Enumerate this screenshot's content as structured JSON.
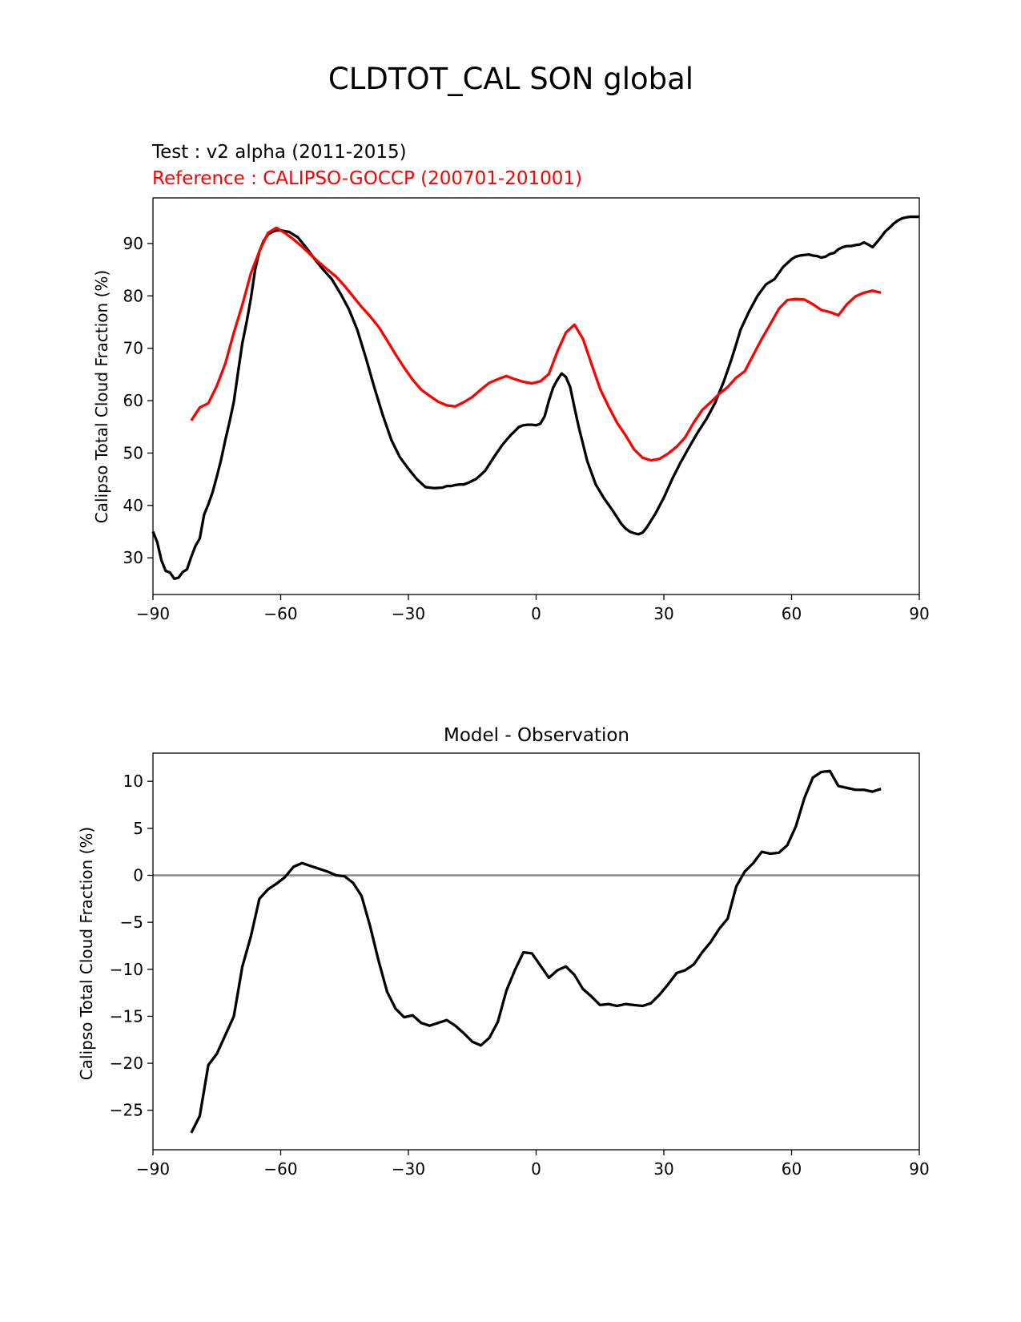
{
  "figure": {
    "title": "CLDTOT_CAL SON global"
  },
  "colors": {
    "test": "#000000",
    "reference": "#ff0000",
    "zero_line": "#808080"
  },
  "chart_data": [
    {
      "type": "line",
      "title_test": "Test : v2 alpha (2011-2015)",
      "title_reference": "Reference : CALIPSO-GOCCP (200701-201001)",
      "xlabel": "",
      "ylabel": "Calipso Total Cloud Fraction (%)",
      "xlim": [
        -90,
        90
      ],
      "ylim": [
        23,
        98.7
      ],
      "xticks": [
        -90,
        -60,
        -30,
        0,
        30,
        60,
        90
      ],
      "yticks": [
        30,
        40,
        50,
        60,
        70,
        80,
        90
      ],
      "series": [
        {
          "name": "Test",
          "color": "#000000",
          "x": [
            -90,
            -89,
            -88,
            -87,
            -86,
            -85,
            -84,
            -83,
            -82,
            -81,
            -80,
            -79,
            -78,
            -77,
            -76,
            -75,
            -74,
            -73,
            -72,
            -71,
            -70,
            -69,
            -68,
            -67,
            -66,
            -65,
            -64,
            -63,
            -62,
            -61,
            -60,
            -58,
            -56,
            -54,
            -52,
            -50,
            -48,
            -46,
            -44,
            -42,
            -40,
            -38,
            -36,
            -34,
            -32,
            -30,
            -28,
            -26,
            -24,
            -22,
            -21,
            -20,
            -19,
            -18,
            -17,
            -16,
            -14,
            -12,
            -10,
            -8,
            -6,
            -4,
            -3,
            -2,
            -1,
            0,
            1,
            2,
            3,
            4,
            5,
            6,
            7,
            8,
            9,
            10,
            12,
            14,
            16,
            18,
            20,
            21,
            22,
            23,
            24,
            25,
            26,
            27,
            28,
            30,
            32,
            34,
            36,
            38,
            40,
            42,
            44,
            45,
            46,
            47,
            48,
            50,
            52,
            54,
            56,
            58,
            60,
            61,
            62,
            63,
            64,
            65,
            66,
            67,
            68,
            69,
            70,
            71,
            72,
            73,
            74,
            75,
            76,
            77,
            78,
            79,
            80,
            81,
            82,
            83,
            84,
            85,
            86,
            87,
            88,
            89,
            90
          ],
          "values": [
            35,
            33,
            29.5,
            27.5,
            27.2,
            26,
            26.2,
            27.3,
            27.8,
            30.2,
            32.3,
            33.7,
            38.2,
            40.2,
            42.5,
            45.5,
            48.7,
            52.5,
            56,
            59.8,
            65.5,
            71,
            75,
            79.5,
            85,
            88.5,
            90.5,
            91.7,
            92.2,
            92.5,
            92.5,
            92.2,
            91.2,
            89.2,
            87,
            85,
            83.2,
            80.5,
            77.5,
            73.5,
            68.2,
            62.5,
            57.2,
            52.5,
            49.2,
            47,
            45,
            43.5,
            43.3,
            43.4,
            43.7,
            43.7,
            43.9,
            44,
            44,
            44.3,
            45.1,
            46.6,
            49.1,
            51.5,
            53.4,
            55,
            55.3,
            55.4,
            55.4,
            55.3,
            55.6,
            57,
            60,
            62.5,
            64,
            65.2,
            64.5,
            62.6,
            58.7,
            55,
            48.5,
            44,
            41.3,
            39,
            36.5,
            35.6,
            35,
            34.7,
            34.5,
            34.8,
            35.8,
            37.1,
            38.4,
            41.5,
            45.1,
            48.3,
            51.2,
            54,
            56.5,
            59.5,
            63.5,
            65.8,
            68.2,
            70.8,
            73.5,
            77,
            80,
            82.2,
            83.2,
            85.5,
            87,
            87.5,
            87.7,
            87.8,
            87.9,
            87.7,
            87.6,
            87.3,
            87.5,
            88,
            88.2,
            88.9,
            89.3,
            89.5,
            89.5,
            89.7,
            89.8,
            90.2,
            89.8,
            89.3,
            90.2,
            91.2,
            92.3,
            93,
            93.8,
            94.4,
            94.8,
            95,
            95.1,
            95.1,
            95.1
          ]
        },
        {
          "name": "Reference",
          "color": "#ff0000",
          "x": [
            -81,
            -79,
            -77,
            -75,
            -73,
            -71,
            -69,
            -67,
            -65,
            -63,
            -61,
            -59,
            -57,
            -55,
            -53,
            -51,
            -49,
            -47,
            -45,
            -43,
            -41,
            -39,
            -37,
            -35,
            -33,
            -31,
            -29,
            -27,
            -25,
            -23,
            -21,
            -19,
            -17,
            -15,
            -13,
            -11,
            -9,
            -7,
            -5,
            -3,
            -1,
            1,
            3,
            5,
            7,
            9,
            11,
            13,
            15,
            17,
            19,
            21,
            23,
            25,
            27,
            29,
            31,
            33,
            35,
            37,
            39,
            41,
            43,
            45,
            47,
            49,
            51,
            53,
            55,
            57,
            59,
            61,
            63,
            65,
            67,
            69,
            71,
            73,
            75,
            77,
            79,
            81
          ],
          "values": [
            56.2,
            58.7,
            59.5,
            62.8,
            67.1,
            73,
            78.3,
            84.3,
            88.5,
            92,
            93,
            92,
            90.8,
            89.4,
            87.9,
            86.4,
            85,
            83.7,
            81.9,
            79.9,
            77.9,
            76.1,
            74.1,
            71.5,
            68.8,
            66.3,
            64,
            62.1,
            60.9,
            59.8,
            59.1,
            58.9,
            59.7,
            60.7,
            62.1,
            63.4,
            64.1,
            64.7,
            64.1,
            63.6,
            63.3,
            63.7,
            65.1,
            69.4,
            73,
            74.5,
            71.8,
            67,
            62.3,
            58.9,
            55.8,
            53.4,
            50.7,
            49.1,
            48.6,
            48.9,
            49.9,
            51.2,
            53,
            55.8,
            58.2,
            59.7,
            61.3,
            62.6,
            64.4,
            65.6,
            68.7,
            71.8,
            74.6,
            77.5,
            79.2,
            79.4,
            79.3,
            78.4,
            77.3,
            76.9,
            76.3,
            78.4,
            79.9,
            80.6,
            81,
            80.6
          ]
        }
      ]
    },
    {
      "type": "line",
      "title": "Model - Observation",
      "xlabel": "",
      "ylabel": "Calipso Total Cloud Fraction (%)",
      "xlim": [
        -90,
        90
      ],
      "ylim": [
        -29.2,
        13
      ],
      "xticks": [
        -90,
        -60,
        -30,
        0,
        30,
        60,
        90
      ],
      "yticks": [
        -25,
        -20,
        -15,
        -10,
        -5,
        0,
        5,
        10
      ],
      "hline": 0,
      "series": [
        {
          "name": "Model - Observation",
          "color": "#000000",
          "x": [
            -81,
            -79,
            -77,
            -75,
            -73,
            -71,
            -69,
            -67,
            -65,
            -63,
            -61,
            -59,
            -57,
            -55,
            -53,
            -51,
            -49,
            -47,
            -45,
            -43,
            -41,
            -39,
            -37,
            -35,
            -33,
            -31,
            -29,
            -27,
            -25,
            -23,
            -21,
            -19,
            -17,
            -15,
            -13,
            -11,
            -9,
            -7,
            -5,
            -3,
            -1,
            1,
            3,
            5,
            7,
            9,
            11,
            13,
            15,
            17,
            19,
            21,
            23,
            25,
            27,
            29,
            31,
            33,
            35,
            37,
            39,
            41,
            43,
            45,
            47,
            49,
            51,
            53,
            55,
            57,
            59,
            61,
            63,
            65,
            67,
            69,
            71,
            73,
            75,
            77,
            79,
            81
          ],
          "values": [
            -27.4,
            -25.6,
            -20.2,
            -19,
            -17,
            -15,
            -9.7,
            -6.5,
            -2.5,
            -1.5,
            -0.9,
            -0.2,
            0.9,
            1.3,
            1,
            0.7,
            0.4,
            0,
            -0.1,
            -0.8,
            -2.2,
            -5.4,
            -9.1,
            -12.4,
            -14.2,
            -15.1,
            -14.9,
            -15.7,
            -16,
            -15.7,
            -15.4,
            -16,
            -16.8,
            -17.7,
            -18.1,
            -17.3,
            -15.6,
            -12.3,
            -10.1,
            -8.2,
            -8.3,
            -9.6,
            -10.9,
            -10.1,
            -9.7,
            -10.6,
            -12.1,
            -12.9,
            -13.8,
            -13.7,
            -13.9,
            -13.7,
            -13.8,
            -13.9,
            -13.6,
            -12.7,
            -11.6,
            -10.4,
            -10.1,
            -9.5,
            -8.2,
            -7.1,
            -5.7,
            -4.6,
            -1.2,
            0.4,
            1.3,
            2.5,
            2.3,
            2.4,
            3.2,
            5.2,
            8.2,
            10.4,
            11,
            11.1,
            9.5,
            9.3,
            9.1,
            9.1,
            8.9,
            9.2
          ]
        }
      ]
    }
  ]
}
